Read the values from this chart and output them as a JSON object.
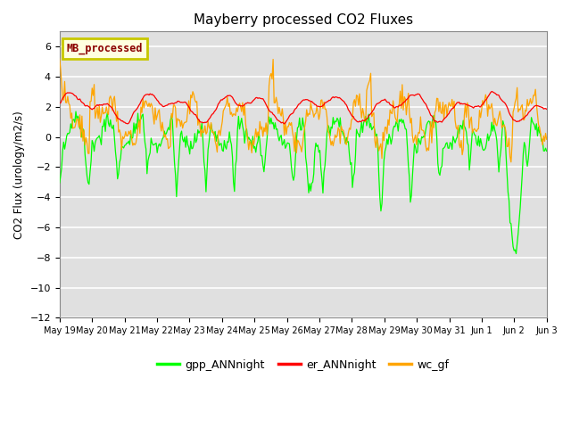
{
  "title": "Mayberry processed CO2 Fluxes",
  "ylabel": "CO2 Flux (urology/m2/s)",
  "ylim": [
    -12,
    7
  ],
  "yticks": [
    -12,
    -10,
    -8,
    -6,
    -4,
    -2,
    0,
    2,
    4,
    6
  ],
  "background_color": "#ffffff",
  "plot_bg_color": "#e0e0e0",
  "grid_color": "#ffffff",
  "legend_label": "MB_processed",
  "legend_text_color": "#8b0000",
  "legend_box_facecolor": "#ffffe0",
  "legend_box_edgecolor": "#c8c800",
  "line_colors": {
    "gpp": "#00ff00",
    "er": "#ff0000",
    "wc": "#ffa500"
  },
  "line_labels": {
    "gpp": "gpp_ANNnight",
    "er": "er_ANNnight",
    "wc": "wc_gf"
  },
  "x_tick_labels": [
    "May 19",
    "May 20",
    "May 21",
    "May 22",
    "May 23",
    "May 24",
    "May 25",
    "May 26",
    "May 27",
    "May 28",
    "May 29",
    "May 30",
    "May 31",
    "Jun 1",
    "Jun 2",
    "Jun 3"
  ],
  "n_points": 480,
  "n_days": 15
}
